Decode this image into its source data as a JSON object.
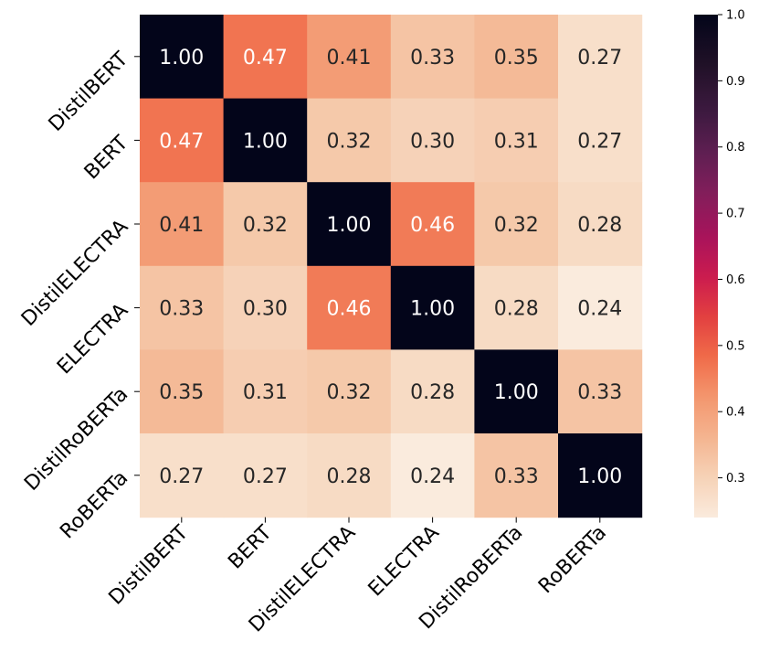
{
  "chart_data": {
    "type": "heatmap",
    "title": "",
    "xlabel": "",
    "ylabel": "",
    "rows": [
      "DistilBERT",
      "BERT",
      "DistilELECTRA",
      "ELECTRA",
      "DistilRoBERTa",
      "RoBERTa"
    ],
    "columns": [
      "DistilBERT",
      "BERT",
      "DistilELECTRA",
      "ELECTRA",
      "DistilRoBERTa",
      "RoBERTa"
    ],
    "values": [
      [
        1.0,
        0.47,
        0.41,
        0.33,
        0.35,
        0.27
      ],
      [
        0.47,
        1.0,
        0.32,
        0.3,
        0.31,
        0.27
      ],
      [
        0.41,
        0.32,
        1.0,
        0.46,
        0.32,
        0.28
      ],
      [
        0.33,
        0.3,
        0.46,
        1.0,
        0.28,
        0.24
      ],
      [
        0.35,
        0.31,
        0.32,
        0.28,
        1.0,
        0.33
      ],
      [
        0.27,
        0.27,
        0.28,
        0.24,
        0.33,
        1.0
      ]
    ],
    "value_format": "0.00",
    "colorbar": {
      "range": [
        0.24,
        1.0
      ],
      "ticks": [
        0.3,
        0.4,
        0.5,
        0.6,
        0.7,
        0.8,
        0.9,
        1.0
      ],
      "tick_labels": [
        "0.3",
        "0.4",
        "0.5",
        "0.6",
        "0.7",
        "0.8",
        "0.9",
        "1.0"
      ],
      "colormap": "rocket_r"
    },
    "colors": {
      "low": "#faebdd",
      "high": "#03051a",
      "text_light": "#ffffff",
      "text_dark": "#262626"
    }
  }
}
